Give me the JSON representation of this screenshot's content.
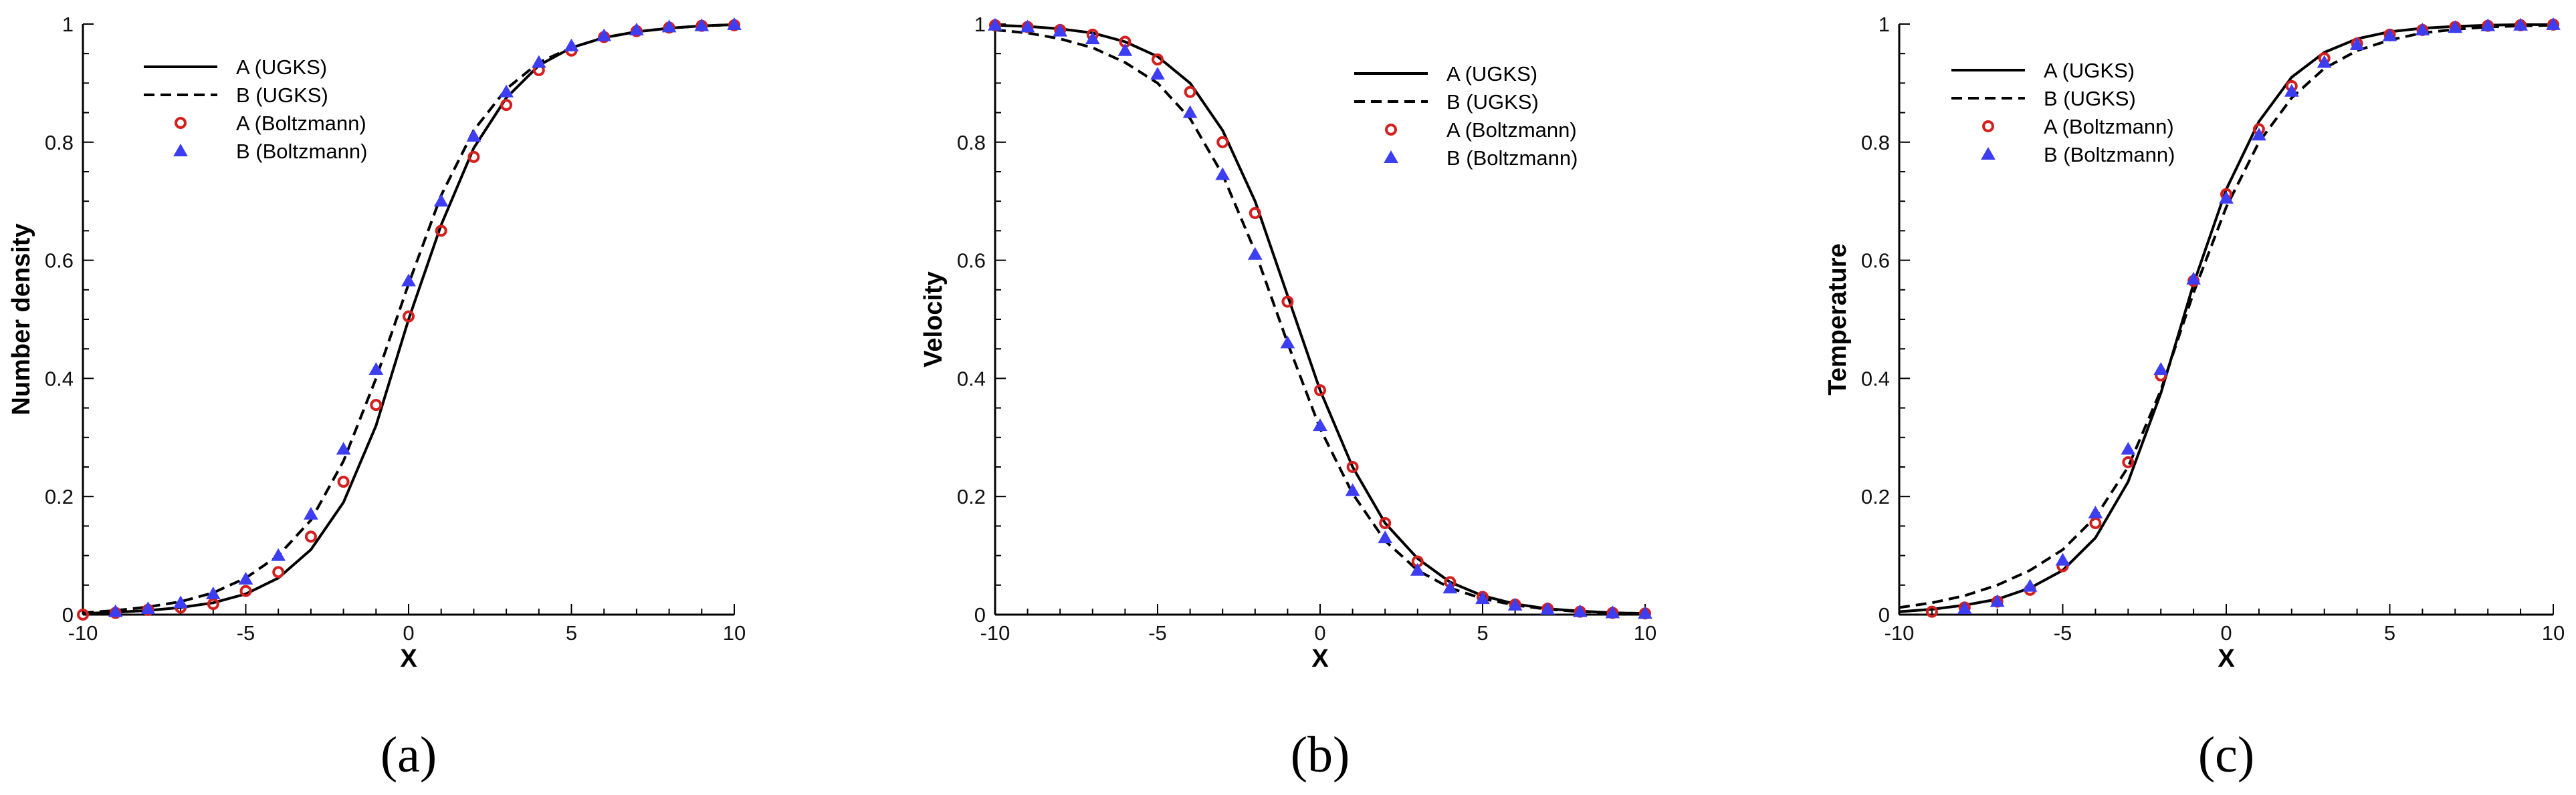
{
  "colors": {
    "a_marker": "#d41f1f",
    "b_marker": "#3d3df2",
    "line": "#000000"
  },
  "chart_data": [
    {
      "type": "line",
      "panel": "(a)",
      "xlabel": "X",
      "ylabel": "Number density",
      "xlim": [
        -10,
        10
      ],
      "ylim": [
        0,
        1
      ],
      "xticks": [
        -10,
        -5,
        0,
        5,
        10
      ],
      "yticks": [
        0,
        0.2,
        0.4,
        0.6,
        0.8,
        1
      ],
      "xtick_labels": [
        "-10",
        "-5",
        "0",
        "5",
        "10"
      ],
      "ytick_labels": [
        "0",
        "0.2",
        "0.4",
        "0.6",
        "0.8",
        "1"
      ],
      "legend_position": "top-left",
      "series": [
        {
          "name": "A (UGKS)",
          "style": "solid-line",
          "x": [
            -10,
            -9,
            -8,
            -7,
            -6,
            -5,
            -4,
            -3,
            -2,
            -1,
            0,
            1,
            2,
            3,
            4,
            5,
            6,
            7,
            8,
            9,
            10
          ],
          "values": [
            0.002,
            0.004,
            0.007,
            0.012,
            0.02,
            0.035,
            0.062,
            0.11,
            0.19,
            0.32,
            0.5,
            0.66,
            0.79,
            0.875,
            0.93,
            0.96,
            0.977,
            0.987,
            0.993,
            0.997,
            0.999
          ]
        },
        {
          "name": "B (UGKS)",
          "style": "dashed-line",
          "x": [
            -10,
            -9,
            -8,
            -7,
            -6,
            -5,
            -4,
            -3,
            -2,
            -1,
            0,
            1,
            2,
            3,
            4,
            5,
            6,
            7,
            8,
            9,
            10
          ],
          "values": [
            0.003,
            0.007,
            0.013,
            0.022,
            0.037,
            0.062,
            0.1,
            0.16,
            0.26,
            0.4,
            0.56,
            0.71,
            0.82,
            0.89,
            0.935,
            0.96,
            0.977,
            0.987,
            0.993,
            0.997,
            0.999
          ]
        },
        {
          "name": "A (Boltzmann)",
          "style": "circle-marker",
          "x": [
            -10,
            -9,
            -8,
            -7,
            -6,
            -5,
            -4,
            -3,
            -2,
            -1,
            0,
            1,
            2,
            3,
            4,
            5,
            6,
            7,
            8,
            9,
            10
          ],
          "values": [
            0.0,
            0.003,
            0.008,
            0.012,
            0.018,
            0.04,
            0.072,
            0.132,
            0.225,
            0.355,
            0.505,
            0.65,
            0.775,
            0.863,
            0.922,
            0.955,
            0.978,
            0.988,
            0.994,
            0.997,
            0.998
          ]
        },
        {
          "name": "B (Boltzmann)",
          "style": "triangle-marker",
          "x": [
            -9,
            -8,
            -7,
            -6,
            -5,
            -4,
            -3,
            -2,
            -1,
            0,
            1,
            2,
            3,
            4,
            5,
            6,
            7,
            8,
            9,
            10
          ],
          "values": [
            0.005,
            0.01,
            0.02,
            0.035,
            0.06,
            0.1,
            0.17,
            0.28,
            0.415,
            0.565,
            0.7,
            0.81,
            0.885,
            0.935,
            0.963,
            0.98,
            0.99,
            0.995,
            0.997,
            0.999
          ]
        }
      ],
      "caption": "(a)"
    },
    {
      "type": "line",
      "panel": "(b)",
      "xlabel": "X",
      "ylabel": "Velocity",
      "xlim": [
        -10,
        10
      ],
      "ylim": [
        0,
        1
      ],
      "xticks": [
        -10,
        -5,
        0,
        5,
        10
      ],
      "yticks": [
        0,
        0.2,
        0.4,
        0.6,
        0.8,
        1
      ],
      "xtick_labels": [
        "-10",
        "-5",
        "0",
        "5",
        "10"
      ],
      "ytick_labels": [
        "0",
        "0.2",
        "0.4",
        "0.6",
        "0.8",
        "1"
      ],
      "legend_position": "top-right",
      "series": [
        {
          "name": "A (UGKS)",
          "style": "solid-line",
          "x": [
            -10,
            -9,
            -8,
            -7,
            -6,
            -5,
            -4,
            -3,
            -2,
            -1,
            0,
            1,
            2,
            3,
            4,
            5,
            6,
            7,
            8,
            9,
            10
          ],
          "values": [
            0.998,
            0.996,
            0.992,
            0.985,
            0.97,
            0.945,
            0.9,
            0.82,
            0.7,
            0.54,
            0.38,
            0.25,
            0.155,
            0.095,
            0.055,
            0.032,
            0.018,
            0.01,
            0.006,
            0.003,
            0.002
          ]
        },
        {
          "name": "B (UGKS)",
          "style": "dashed-line",
          "x": [
            -10,
            -9,
            -8,
            -7,
            -6,
            -5,
            -4,
            -3,
            -2,
            -1,
            0,
            1,
            2,
            3,
            4,
            5,
            6,
            7,
            8,
            9,
            10
          ],
          "values": [
            0.99,
            0.985,
            0.975,
            0.96,
            0.935,
            0.9,
            0.84,
            0.745,
            0.615,
            0.46,
            0.315,
            0.205,
            0.125,
            0.075,
            0.045,
            0.027,
            0.016,
            0.009,
            0.005,
            0.003,
            0.002
          ]
        },
        {
          "name": "A (Boltzmann)",
          "style": "circle-marker",
          "x": [
            -10,
            -9,
            -8,
            -7,
            -6,
            -5,
            -4,
            -3,
            -2,
            -1,
            0,
            1,
            2,
            3,
            4,
            5,
            6,
            7,
            8,
            9,
            10
          ],
          "values": [
            0.998,
            0.995,
            0.99,
            0.982,
            0.97,
            0.94,
            0.885,
            0.8,
            0.68,
            0.53,
            0.38,
            0.25,
            0.155,
            0.09,
            0.055,
            0.03,
            0.017,
            0.01,
            0.005,
            0.003,
            0.002
          ]
        },
        {
          "name": "B (Boltzmann)",
          "style": "triangle-marker",
          "x": [
            -10,
            -9,
            -8,
            -7,
            -6,
            -5,
            -4,
            -3,
            -2,
            -1,
            0,
            1,
            2,
            3,
            4,
            5,
            6,
            7,
            8,
            9,
            10
          ],
          "values": [
            0.998,
            0.995,
            0.988,
            0.975,
            0.955,
            0.915,
            0.85,
            0.745,
            0.61,
            0.46,
            0.32,
            0.21,
            0.13,
            0.075,
            0.045,
            0.027,
            0.016,
            0.009,
            0.005,
            0.003,
            0.002
          ]
        }
      ],
      "caption": "(b)"
    },
    {
      "type": "line",
      "panel": "(c)",
      "xlabel": "X",
      "ylabel": "Temperature",
      "xlim": [
        -10,
        10
      ],
      "ylim": [
        0,
        1
      ],
      "xticks": [
        -10,
        -5,
        0,
        5,
        10
      ],
      "yticks": [
        0,
        0.2,
        0.4,
        0.6,
        0.8,
        1
      ],
      "xtick_labels": [
        "-10",
        "-5",
        "0",
        "5",
        "10"
      ],
      "ytick_labels": [
        "0",
        "0.2",
        "0.4",
        "0.6",
        "0.8",
        "1"
      ],
      "legend_position": "top-left",
      "series": [
        {
          "name": "A (UGKS)",
          "style": "solid-line",
          "x": [
            -10,
            -9,
            -8,
            -7,
            -6,
            -5,
            -4,
            -3,
            -2,
            -1,
            0,
            1,
            2,
            3,
            4,
            5,
            6,
            7,
            8,
            9,
            10
          ],
          "values": [
            0.005,
            0.009,
            0.016,
            0.026,
            0.045,
            0.075,
            0.13,
            0.225,
            0.375,
            0.56,
            0.72,
            0.835,
            0.91,
            0.952,
            0.975,
            0.987,
            0.993,
            0.996,
            0.998,
            0.999,
            0.999
          ]
        },
        {
          "name": "B (UGKS)",
          "style": "dashed-line",
          "x": [
            -10,
            -9,
            -8,
            -7,
            -6,
            -5,
            -4,
            -3,
            -2,
            -1,
            0,
            1,
            2,
            3,
            4,
            5,
            6,
            7,
            8,
            9,
            10
          ],
          "values": [
            0.012,
            0.02,
            0.032,
            0.05,
            0.075,
            0.11,
            0.165,
            0.25,
            0.38,
            0.545,
            0.69,
            0.8,
            0.875,
            0.925,
            0.955,
            0.973,
            0.985,
            0.991,
            0.995,
            0.997,
            0.998
          ]
        },
        {
          "name": "A (Boltzmann)",
          "style": "circle-marker",
          "x": [
            -9,
            -8,
            -7,
            -6,
            -5,
            -4,
            -3,
            -2,
            -1,
            0,
            1,
            2,
            3,
            4,
            5,
            6,
            7,
            8,
            9,
            10
          ],
          "values": [
            0.005,
            0.012,
            0.022,
            0.042,
            0.082,
            0.155,
            0.258,
            0.405,
            0.565,
            0.712,
            0.822,
            0.895,
            0.942,
            0.967,
            0.982,
            0.99,
            0.995,
            0.997,
            0.998,
            0.999
          ]
        },
        {
          "name": "B (Boltzmann)",
          "style": "triangle-marker",
          "x": [
            -8,
            -7,
            -6,
            -5,
            -4,
            -3,
            -2,
            -1,
            0,
            1,
            2,
            3,
            4,
            5,
            6,
            7,
            8,
            9,
            10
          ],
          "values": [
            0.01,
            0.022,
            0.048,
            0.092,
            0.172,
            0.28,
            0.415,
            0.568,
            0.705,
            0.812,
            0.886,
            0.935,
            0.965,
            0.98,
            0.99,
            0.994,
            0.997,
            0.998,
            0.999
          ]
        }
      ],
      "caption": "(c)"
    }
  ]
}
